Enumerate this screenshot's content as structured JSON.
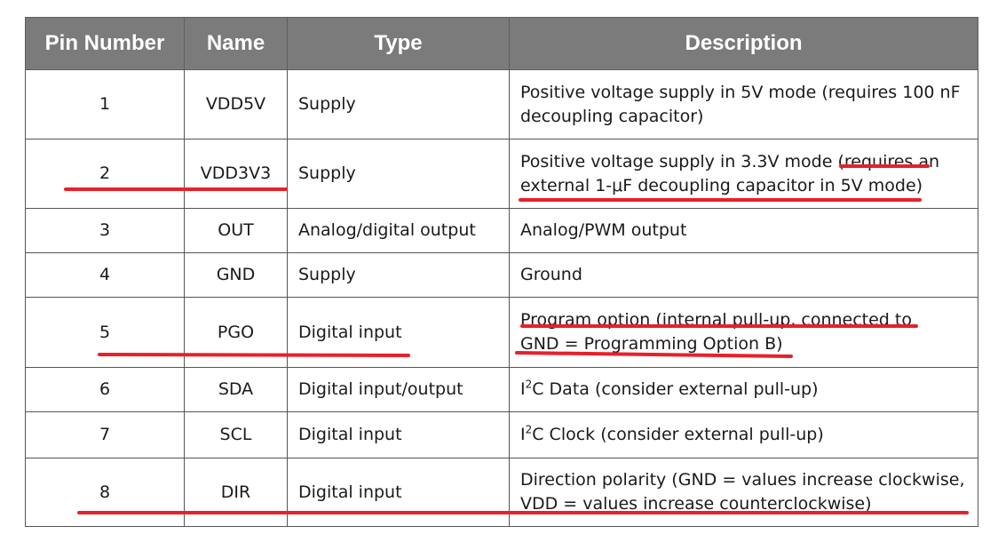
{
  "table": {
    "headers": [
      "Pin Number",
      "Name",
      "Type",
      "Description"
    ],
    "rows": [
      {
        "pin": "1",
        "name": "VDD5V",
        "type": "Supply",
        "description": [
          "Positive voltage supply in 5V mode (requires 100 nF",
          "decoupling capacitor)"
        ]
      },
      {
        "pin": "2",
        "name": "VDD3V3",
        "type": "Supply",
        "description": [
          "Positive voltage supply in 3.3V mode (requires an",
          "external 1-μF decoupling capacitor in 5V mode)"
        ]
      },
      {
        "pin": "3",
        "name": "OUT",
        "type": "Analog/digital output",
        "description": [
          "Analog/PWM output"
        ]
      },
      {
        "pin": "4",
        "name": "GND",
        "type": "Supply",
        "description": [
          "Ground"
        ]
      },
      {
        "pin": "5",
        "name": "PGO",
        "type": "Digital input",
        "description": [
          "Program option (internal pull-up, connected to",
          "GND = Programming Option B)"
        ]
      },
      {
        "pin": "6",
        "name": "SDA",
        "type": "Digital input/output",
        "description_prefix": "I",
        "description_sup": "2",
        "description_rest": "C Data (consider external pull-up)"
      },
      {
        "pin": "7",
        "name": "SCL",
        "type": "Digital input",
        "description_prefix": "I",
        "description_sup": "2",
        "description_rest": "C Clock (consider external pull-up)"
      },
      {
        "pin": "8",
        "name": "DIR",
        "type": "Digital input",
        "description": [
          "Direction polarity (GND = values increase clockwise,",
          "VDD = values increase counterclockwise)"
        ]
      }
    ]
  },
  "colors": {
    "header_bg": "#7b7b7b",
    "header_text": "#ffffff",
    "annotation": "#e8202a"
  }
}
